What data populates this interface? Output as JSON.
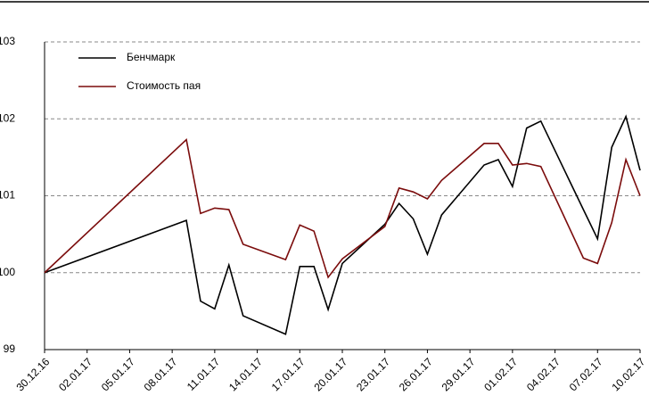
{
  "chart_data": {
    "type": "line",
    "x": [
      "30.12.16",
      "09.01.17",
      "10.01.17",
      "11.01.17",
      "12.01.17",
      "13.01.17",
      "16.01.17",
      "17.01.17",
      "18.01.17",
      "19.01.17",
      "20.01.17",
      "23.01.17",
      "24.01.17",
      "25.01.17",
      "26.01.17",
      "27.01.17",
      "30.01.17",
      "31.01.17",
      "01.02.17",
      "02.02.17",
      "03.02.17",
      "06.02.17",
      "07.02.17",
      "08.02.17",
      "09.02.17",
      "10.02.17"
    ],
    "series": [
      {
        "name": "Бенчмарк",
        "color": "#000000",
        "values": [
          100,
          100.68,
          99.63,
          99.53,
          100.1,
          99.44,
          99.2,
          100.08,
          100.08,
          99.52,
          100.12,
          100.63,
          100.9,
          100.7,
          100.24,
          100.75,
          101.4,
          101.47,
          101.12,
          101.88,
          101.97,
          100.82,
          100.44,
          101.63,
          102.03,
          101.33
        ]
      },
      {
        "name": "Стоимость пая",
        "color": "#7b0c0c",
        "values": [
          100,
          101.73,
          100.77,
          100.84,
          100.82,
          100.37,
          100.17,
          100.62,
          100.54,
          99.94,
          100.18,
          100.6,
          101.1,
          101.05,
          100.96,
          101.2,
          101.68,
          101.68,
          101.4,
          101.42,
          101.38,
          100.19,
          100.12,
          100.65,
          101.47,
          101.0
        ]
      }
    ],
    "xlim": [
      "30.12.16",
      "10.02.17"
    ],
    "xticks": [
      "30.12.16",
      "02.01.17",
      "05.01.17",
      "08.01.17",
      "11.01.17",
      "14.01.17",
      "17.01.17",
      "20.01.17",
      "23.01.17",
      "26.01.17",
      "29.01.17",
      "01.02.17",
      "04.02.17",
      "07.02.17",
      "10.02.17"
    ],
    "ylim": [
      99,
      103
    ],
    "yticks": [
      99,
      100,
      101,
      102,
      103
    ],
    "grid": true,
    "legend": "top-left"
  }
}
